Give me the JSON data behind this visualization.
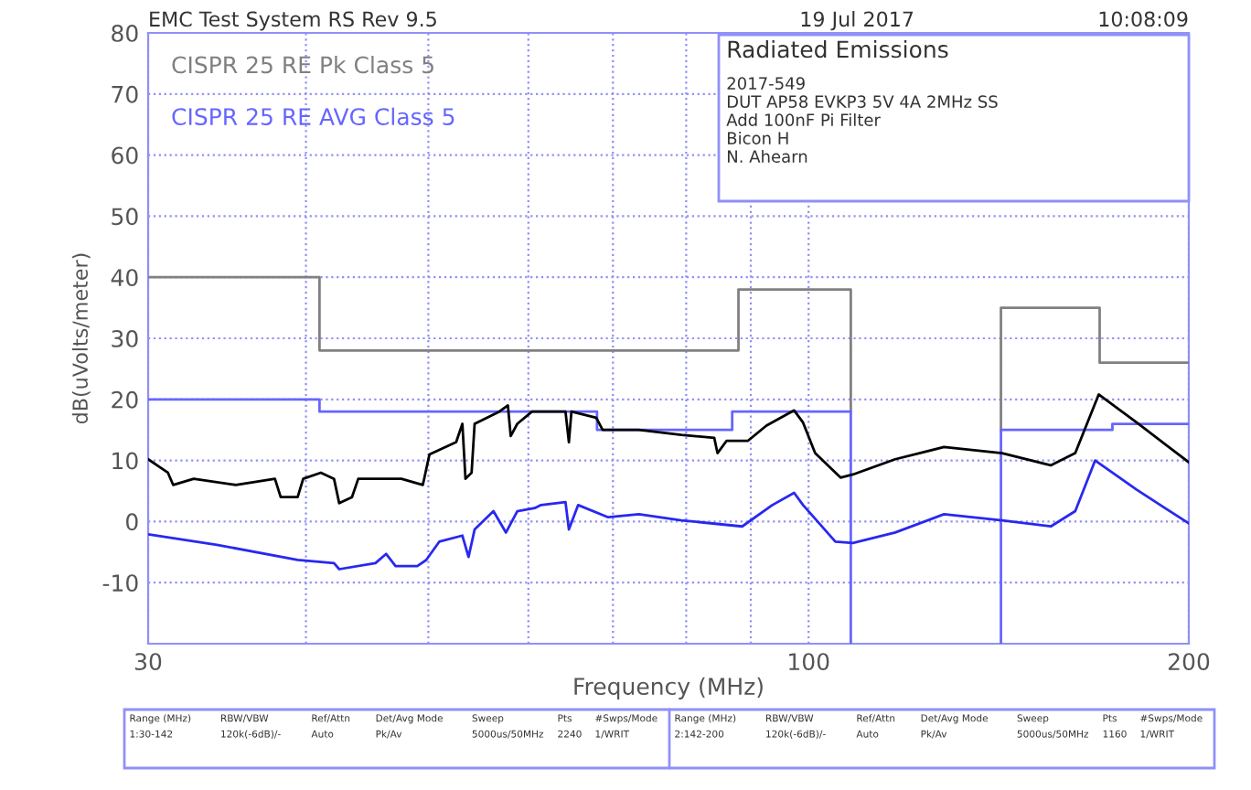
{
  "chart_data": {
    "type": "line",
    "title": "Radiated Emissions",
    "xlabel": "Frequency (MHz)",
    "ylabel": "dB(uVolts/meter)",
    "log": "x",
    "xlim": [
      30,
      200
    ],
    "xticks": [
      30,
      {
        "value": 40,
        "label": null
      },
      {
        "value": 50,
        "label": null
      },
      {
        "value": 60,
        "label": null
      },
      {
        "value": 70,
        "label": null
      },
      {
        "value": 80,
        "label": null
      },
      {
        "value": 90,
        "label": null
      },
      100,
      200
    ],
    "ylim": [
      -20,
      80
    ],
    "yticks": [
      {
        "value": -20,
        "label": null
      },
      -10,
      0,
      10,
      20,
      30,
      40,
      50,
      60,
      70,
      80
    ],
    "grid": true,
    "legend": "top left",
    "line_style": "solid",
    "marker": "none",
    "series": [
      {
        "name": "CISPR 25 RE Pk Class 5",
        "color": "#808080",
        "x": [
          30,
          41,
          41,
          88,
          88,
          108,
          108,
          125,
          142,
          142,
          170,
          170,
          200
        ],
        "values": [
          40,
          40,
          28,
          28,
          38,
          38,
          18,
          null,
          15,
          35,
          35,
          26,
          26
        ]
      },
      {
        "name": "CISPR 25 RE AVG Class 5",
        "color": "#6666ff",
        "x": [
          30,
          41,
          41,
          68,
          68,
          87,
          87,
          108,
          108,
          125,
          142,
          142,
          174,
          174,
          200
        ],
        "values": [
          20,
          20,
          18,
          18,
          15,
          15,
          18,
          18,
          -20,
          null,
          -20,
          15,
          15,
          16,
          16
        ]
      },
      {
        "color": "#000000",
        "x": [
          30,
          31.1,
          31.4,
          32.6,
          35.2,
          37.8,
          38.2,
          39.4,
          39.8,
          41.1,
          42.1,
          42.5,
          43.5,
          44.0,
          47.6,
          49.5,
          50.1,
          52.6,
          53.2,
          53.5,
          54.1,
          54.4,
          56.9,
          57.8,
          58.1,
          58.8,
          60.4,
          64.2,
          64.6,
          64.9,
          67.9,
          68.7,
          73.4,
          79.3,
          84.2,
          84.7,
          86.1,
          89.5,
          92.6,
          97.4,
          99.0,
          101.2,
          106.0,
          108.4,
          117.1,
          128.0,
          142.3,
          155.5,
          162.6,
          169.7,
          181.9,
          200
        ],
        "values": [
          10.2,
          8,
          6,
          7,
          6,
          7,
          4,
          4,
          7,
          8,
          7,
          3,
          4,
          7,
          7,
          6,
          11,
          13,
          16,
          7,
          8,
          16,
          18,
          19,
          14,
          16,
          18,
          18,
          13,
          18,
          17,
          15,
          15,
          14.2,
          13.7,
          11.2,
          13.2,
          13.2,
          15.7,
          18.2,
          16.2,
          11.2,
          7.2,
          7.7,
          10.2,
          12.2,
          11.2,
          9.2,
          11.2,
          20.8,
          16.2,
          9.7
        ]
      },
      {
        "color": "#2828f0",
        "x": [
          30,
          34.0,
          39.4,
          42.1,
          42.5,
          45.4,
          46.3,
          47.1,
          49.0,
          49.8,
          51.0,
          53.2,
          53.8,
          54.4,
          56.3,
          57.6,
          58.8,
          60.7,
          61.4,
          64.2,
          64.6,
          65.7,
          69.4,
          73.4,
          79.3,
          88.6,
          93.6,
          97.4,
          99.0,
          105.0,
          108.4,
          117.1,
          128.0,
          142.3,
          155.5,
          162.6,
          168.6,
          181.9,
          200
        ],
        "values": [
          -2.1,
          -3.8,
          -6.3,
          -6.8,
          -7.8,
          -6.8,
          -5.3,
          -7.3,
          -7.3,
          -6.3,
          -3.3,
          -2.3,
          -5.8,
          -1.3,
          1.7,
          -1.8,
          1.7,
          2.2,
          2.7,
          3.2,
          -1.3,
          2.7,
          0.7,
          1.2,
          0.2,
          -0.8,
          2.7,
          4.7,
          2.7,
          -3.3,
          -3.5,
          -1.8,
          1.2,
          0.2,
          -0.8,
          1.7,
          10.0,
          5.2,
          -0.3
        ]
      }
    ],
    "annotations": [
      "EMC Test System RS Rev 9.5",
      "19 Jul 2017",
      "10:08:09",
      "2017-549",
      "DUT AP58 EVKP3 5V 4A 2MHz SS",
      "Add 100nF Pi Filter",
      "Bicon H",
      "N. Ahearn",
      "Range (MHz)",
      "1:30-142",
      "RBW/VBW",
      "120k(-6dB)/-",
      "Ref/Attn",
      "Auto",
      "Det/Avg Mode",
      "Pk/Av",
      "Sweep",
      "5000us/50MHz",
      "Pts",
      "2240",
      "#Swps/Mode",
      "1/WRIT",
      "Range (MHz)",
      "2:142-200",
      "RBW/VBW",
      "120k(-6dB)/-",
      "Ref/Attn",
      "Auto",
      "Det/Avg Mode",
      "Pk/Av",
      "Sweep",
      "5000us/50MHz",
      "Pts",
      "1160",
      "#Swps/Mode",
      "1/WRIT"
    ]
  }
}
